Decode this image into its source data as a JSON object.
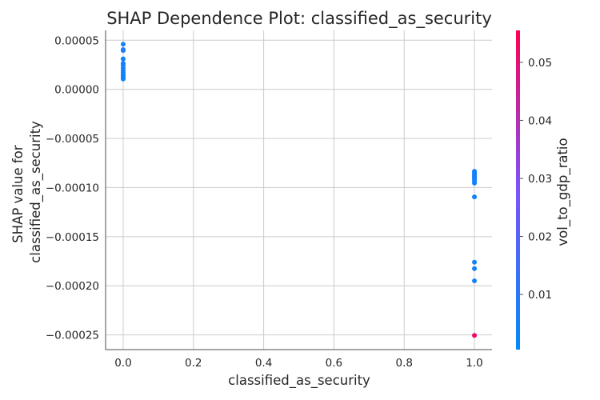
{
  "chart_data": {
    "type": "scatter",
    "title": "SHAP Dependence Plot: classified_as_security",
    "xlabel": "classified_as_security",
    "ylabel_lines": [
      "SHAP value for",
      "classified_as_security"
    ],
    "xlim": [
      -0.05,
      1.05
    ],
    "ylim": [
      -0.000265,
      6e-05
    ],
    "x_ticks": [
      {
        "value": 0.0,
        "label": "0.0"
      },
      {
        "value": 0.2,
        "label": "0.2"
      },
      {
        "value": 0.4,
        "label": "0.4"
      },
      {
        "value": 0.6,
        "label": "0.6"
      },
      {
        "value": 0.8,
        "label": "0.8"
      },
      {
        "value": 1.0,
        "label": "1.0"
      }
    ],
    "y_ticks": [
      {
        "value": 5e-05,
        "label": "0.00005"
      },
      {
        "value": 0.0,
        "label": "0.00000"
      },
      {
        "value": -5e-05,
        "label": "−0.00005"
      },
      {
        "value": -0.0001,
        "label": "−0.00010"
      },
      {
        "value": -0.00015,
        "label": "−0.00015"
      },
      {
        "value": -0.0002,
        "label": "−0.00020"
      },
      {
        "value": -0.00025,
        "label": "−0.00025"
      }
    ],
    "grid": true,
    "colorbar": {
      "label": "vol_to_gdp_ratio",
      "range": [
        0.0005,
        0.0555
      ],
      "ticks": [
        {
          "value": 0.01,
          "label": "0.01"
        },
        {
          "value": 0.02,
          "label": "0.02"
        },
        {
          "value": 0.03,
          "label": "0.03"
        },
        {
          "value": 0.04,
          "label": "0.04"
        },
        {
          "value": 0.05,
          "label": "0.05"
        }
      ],
      "colors": [
        "#008afb",
        "#7c52ff",
        "#ff0052"
      ]
    },
    "points": [
      {
        "x": 0,
        "y": 4.6e-05,
        "c": 0.006
      },
      {
        "x": 0,
        "y": 4.05e-05,
        "c": 0.009
      },
      {
        "x": 0,
        "y": 3.95e-05,
        "c": 0.007
      },
      {
        "x": 0,
        "y": 3.1e-05,
        "c": 0.005
      },
      {
        "x": 0,
        "y": 2.65e-05,
        "c": 0.004
      },
      {
        "x": 0,
        "y": 2.45e-05,
        "c": 0.006
      },
      {
        "x": 0,
        "y": 2.15e-05,
        "c": 0.005
      },
      {
        "x": 0,
        "y": 1.9e-05,
        "c": 0.004
      },
      {
        "x": 0,
        "y": 1.7e-05,
        "c": 0.005
      },
      {
        "x": 0,
        "y": 1.5e-05,
        "c": 0.004
      },
      {
        "x": 0,
        "y": 1.4e-05,
        "c": 0.003
      },
      {
        "x": 0,
        "y": 1.25e-05,
        "c": 0.004
      },
      {
        "x": 0,
        "y": 1.15e-05,
        "c": 0.003
      },
      {
        "x": 0,
        "y": 1.05e-05,
        "c": 0.003
      },
      {
        "x": 1,
        "y": -8.35e-05,
        "c": 0.005
      },
      {
        "x": 1,
        "y": -8.55e-05,
        "c": 0.004
      },
      {
        "x": 1,
        "y": -8.7e-05,
        "c": 0.006
      },
      {
        "x": 1,
        "y": -8.85e-05,
        "c": 0.005
      },
      {
        "x": 1,
        "y": -9e-05,
        "c": 0.004
      },
      {
        "x": 1,
        "y": -9.15e-05,
        "c": 0.005
      },
      {
        "x": 1,
        "y": -9.35e-05,
        "c": 0.004
      },
      {
        "x": 1,
        "y": -9.55e-05,
        "c": 0.005
      },
      {
        "x": 1,
        "y": -0.0001095,
        "c": 0.004
      },
      {
        "x": 1,
        "y": -0.000176,
        "c": 0.005
      },
      {
        "x": 1,
        "y": -0.0001825,
        "c": 0.004
      },
      {
        "x": 1,
        "y": -0.000195,
        "c": 0.005
      },
      {
        "x": 1,
        "y": -0.0002505,
        "c": 0.052
      }
    ]
  }
}
